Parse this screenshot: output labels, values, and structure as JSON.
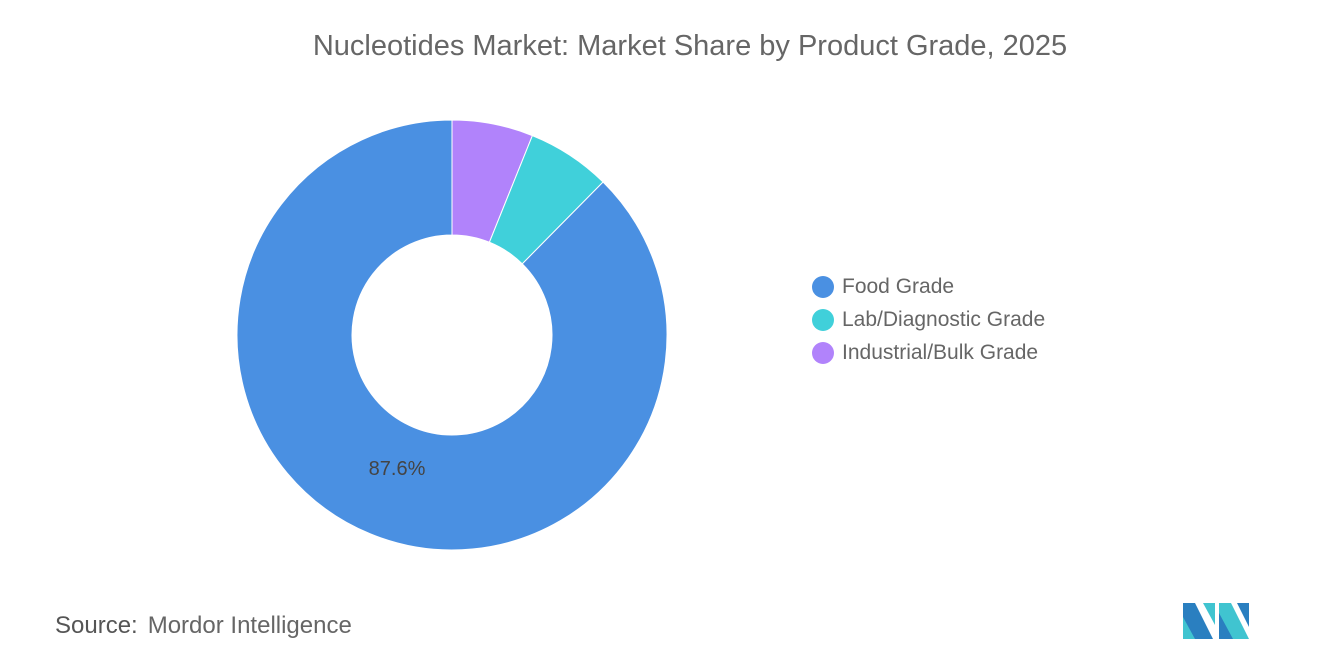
{
  "chart_data": {
    "type": "pie",
    "title": "Nucleotides Market: Market Share by Product Grade, 2025",
    "donut": true,
    "categories": [
      "Industrial/Bulk Grade",
      "Lab/Diagnostic Grade",
      "Food Grade"
    ],
    "values": [
      6.1,
      6.3,
      87.6
    ],
    "colors": [
      "#b183fb",
      "#40d0da",
      "#4a90e2"
    ],
    "data_labels": [
      {
        "category": "Food Grade",
        "text": "87.6%"
      }
    ],
    "legend": {
      "placement": "right",
      "entries": [
        {
          "label": "Food Grade",
          "color": "#4a90e2"
        },
        {
          "label": "Lab/Diagnostic Grade",
          "color": "#40d0da"
        },
        {
          "label": "Industrial/Bulk Grade",
          "color": "#b183fb"
        }
      ]
    }
  },
  "source": {
    "label": "Source:",
    "value": "Mordor Intelligence"
  },
  "logo": {
    "name": "mordor-intelligence-logo"
  }
}
